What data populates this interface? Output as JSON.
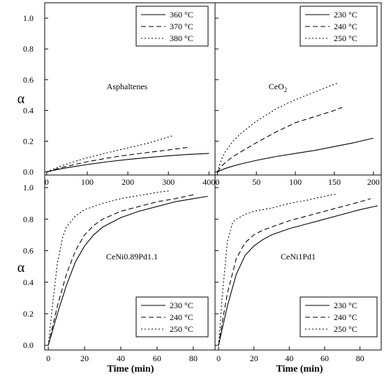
{
  "figure": {
    "ylabel_top": "α",
    "ylabel_bottom": "α",
    "xlabel_left": "Time (min)",
    "xlabel_right": "Time (min)"
  },
  "chart_data": [
    {
      "type": "line",
      "label": "Asphaltenes",
      "xlabel": "",
      "ylabel": "α",
      "xlim": [
        -5,
        415
      ],
      "ylim": [
        -0.02,
        1.1
      ],
      "xticks": [
        0,
        100,
        200,
        300,
        400
      ],
      "yticks": [
        0.0,
        0.2,
        0.4,
        0.6,
        0.8,
        1.0
      ],
      "ytick_labels": [
        "0.0",
        "0.2",
        "0.4",
        "0.6",
        "0.8",
        "1.0"
      ],
      "legend_position": "top-right",
      "series": [
        {
          "name": "360 °C",
          "style": "solid",
          "x": [
            0,
            25,
            50,
            75,
            100,
            150,
            200,
            250,
            300,
            350,
            400
          ],
          "y": [
            0,
            0.015,
            0.027,
            0.038,
            0.048,
            0.066,
            0.081,
            0.094,
            0.105,
            0.114,
            0.12
          ]
        },
        {
          "name": "370 °C",
          "style": "dashed",
          "x": [
            0,
            25,
            50,
            75,
            100,
            150,
            200,
            250,
            300,
            350
          ],
          "y": [
            0,
            0.02,
            0.037,
            0.052,
            0.066,
            0.09,
            0.11,
            0.127,
            0.143,
            0.16
          ]
        },
        {
          "name": "380 °C",
          "style": "dotted",
          "x": [
            0,
            25,
            50,
            75,
            100,
            150,
            200,
            250,
            310
          ],
          "y": [
            0,
            0.028,
            0.052,
            0.073,
            0.092,
            0.125,
            0.156,
            0.187,
            0.235
          ]
        }
      ]
    },
    {
      "type": "line",
      "label": "CeO",
      "label_subscript": "2",
      "xlabel": "",
      "ylabel": "",
      "xlim": [
        -3,
        210
      ],
      "ylim": [
        -0.02,
        1.1
      ],
      "xticks": [
        0,
        50,
        100,
        150,
        200
      ],
      "yticks": [
        0.0,
        0.2,
        0.4,
        0.6,
        0.8,
        1.0
      ],
      "legend_position": "top-right",
      "series": [
        {
          "name": "230 °C",
          "style": "solid",
          "x": [
            0,
            5,
            10,
            20,
            30,
            50,
            75,
            100,
            125,
            150,
            175,
            200
          ],
          "y": [
            0,
            0.012,
            0.022,
            0.038,
            0.052,
            0.075,
            0.1,
            0.12,
            0.14,
            0.165,
            0.19,
            0.22
          ]
        },
        {
          "name": "240 °C",
          "style": "dashed",
          "x": [
            0,
            5,
            10,
            20,
            30,
            50,
            75,
            100,
            125,
            150,
            160
          ],
          "y": [
            0,
            0.035,
            0.06,
            0.1,
            0.13,
            0.19,
            0.26,
            0.32,
            0.36,
            0.4,
            0.42
          ]
        },
        {
          "name": "250 °C",
          "style": "dotted",
          "x": [
            0,
            5,
            10,
            20,
            30,
            50,
            75,
            100,
            125,
            155
          ],
          "y": [
            0,
            0.08,
            0.13,
            0.2,
            0.25,
            0.33,
            0.41,
            0.47,
            0.52,
            0.58
          ]
        }
      ]
    },
    {
      "type": "line",
      "label": "CeNi0.89Pd1.1",
      "xlabel": "Time (min)",
      "ylabel": "α",
      "xlim": [
        -2,
        92
      ],
      "ylim": [
        -0.03,
        1.08
      ],
      "xticks": [
        0,
        20,
        40,
        60,
        80
      ],
      "yticks": [
        0.0,
        0.2,
        0.4,
        0.6,
        0.8,
        1.0
      ],
      "ytick_labels": [
        "0.0",
        "0.2",
        "0.4",
        "0.6",
        "0.8",
        "1.0"
      ],
      "legend_position": "bottom-right",
      "series": [
        {
          "name": "230 °C",
          "style": "solid",
          "x": [
            0,
            2,
            5,
            10,
            15,
            20,
            25,
            30,
            40,
            50,
            60,
            70,
            80,
            88
          ],
          "y": [
            0,
            0.08,
            0.2,
            0.38,
            0.53,
            0.63,
            0.7,
            0.75,
            0.81,
            0.85,
            0.88,
            0.91,
            0.93,
            0.945
          ]
        },
        {
          "name": "240 °C",
          "style": "dashed",
          "x": [
            0,
            2,
            5,
            10,
            15,
            20,
            25,
            30,
            40,
            50,
            60,
            70,
            80
          ],
          "y": [
            0,
            0.1,
            0.25,
            0.45,
            0.6,
            0.7,
            0.76,
            0.8,
            0.85,
            0.88,
            0.91,
            0.93,
            0.955
          ]
        },
        {
          "name": "250 °C",
          "style": "dotted",
          "x": [
            0,
            2,
            5,
            8,
            10,
            15,
            20,
            30,
            40,
            50,
            60,
            67
          ],
          "y": [
            0,
            0.22,
            0.52,
            0.69,
            0.75,
            0.82,
            0.86,
            0.9,
            0.93,
            0.95,
            0.97,
            0.98
          ]
        }
      ]
    },
    {
      "type": "line",
      "label": "CeNi1Pd1",
      "xlabel": "Time (min)",
      "ylabel": "",
      "xlim": [
        -2,
        92
      ],
      "ylim": [
        -0.03,
        1.08
      ],
      "xticks": [
        0,
        20,
        40,
        60,
        80
      ],
      "yticks": [
        0.0,
        0.2,
        0.4,
        0.6,
        0.8,
        1.0
      ],
      "legend_position": "bottom-right",
      "series": [
        {
          "name": "230 °C",
          "style": "solid",
          "x": [
            0,
            2,
            5,
            10,
            15,
            20,
            25,
            30,
            40,
            50,
            60,
            70,
            80,
            90
          ],
          "y": [
            0,
            0.1,
            0.25,
            0.45,
            0.57,
            0.63,
            0.67,
            0.7,
            0.74,
            0.77,
            0.8,
            0.83,
            0.86,
            0.885
          ]
        },
        {
          "name": "240 °C",
          "style": "dashed",
          "x": [
            0,
            2,
            5,
            10,
            15,
            20,
            25,
            30,
            40,
            50,
            60,
            70,
            80,
            86
          ],
          "y": [
            0,
            0.14,
            0.33,
            0.55,
            0.65,
            0.7,
            0.73,
            0.75,
            0.79,
            0.82,
            0.85,
            0.88,
            0.91,
            0.93
          ]
        },
        {
          "name": "250 °C",
          "style": "dotted",
          "x": [
            0,
            2,
            5,
            8,
            10,
            15,
            20,
            30,
            40,
            50,
            60,
            67
          ],
          "y": [
            0,
            0.3,
            0.66,
            0.78,
            0.8,
            0.83,
            0.85,
            0.87,
            0.9,
            0.92,
            0.945,
            0.96
          ]
        }
      ]
    }
  ]
}
